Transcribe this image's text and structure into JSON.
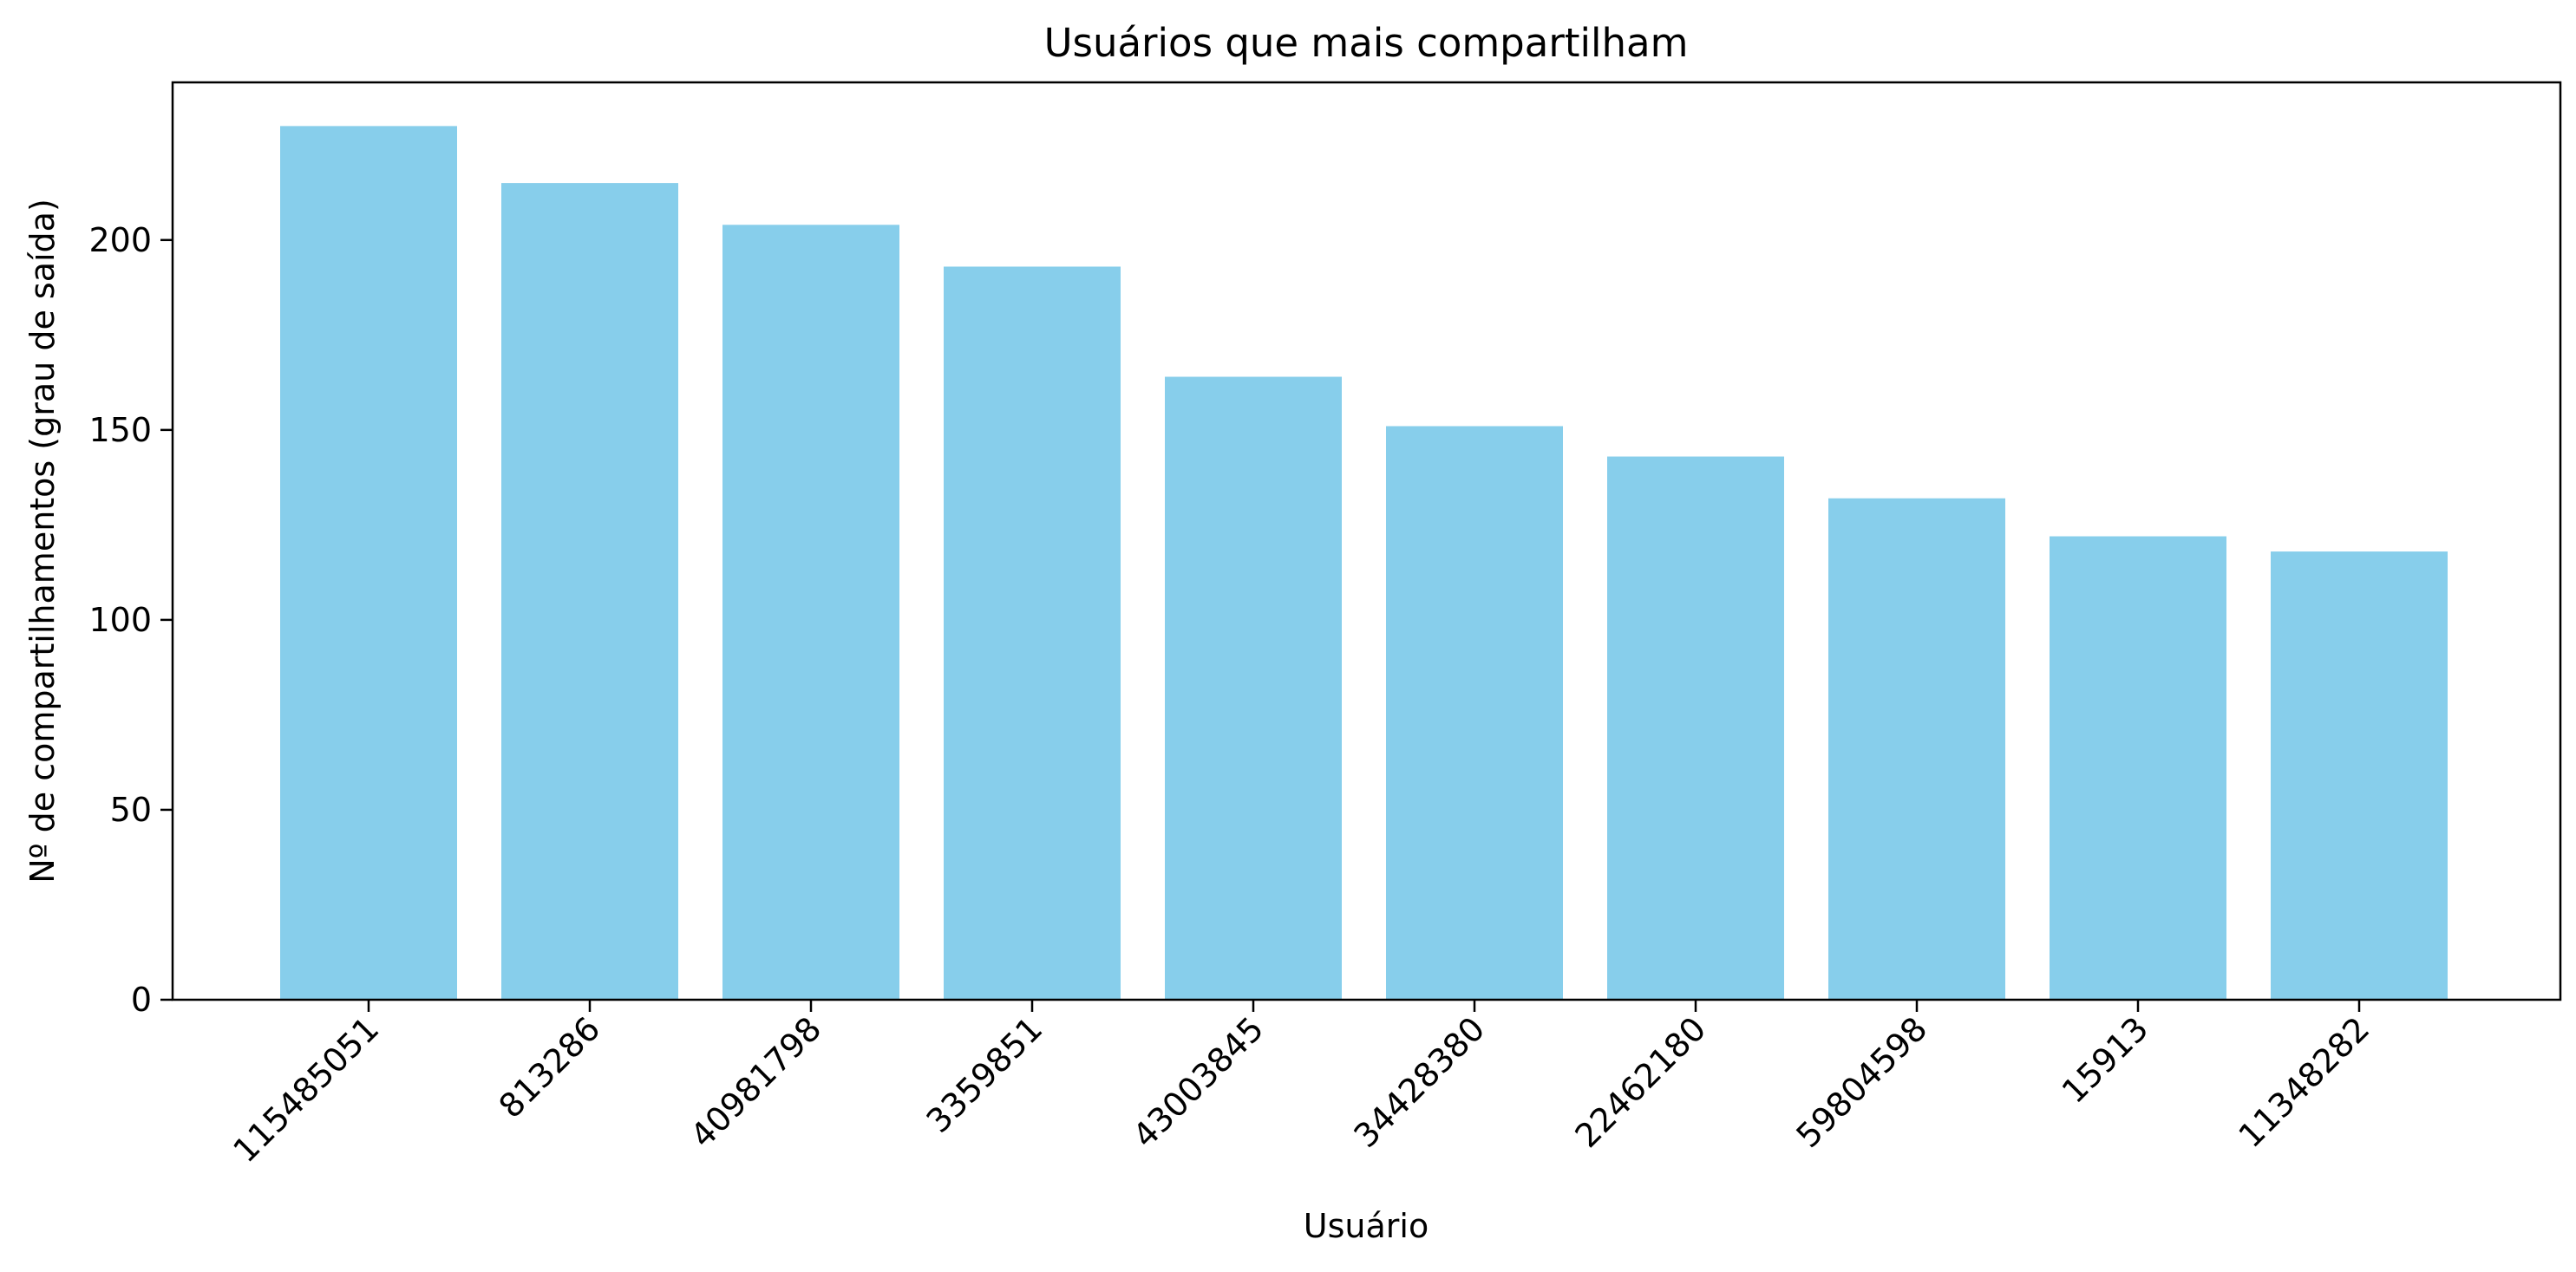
{
  "chart_data": {
    "type": "bar",
    "title": "Usuários que mais compartilham",
    "xlabel": "Usuário",
    "ylabel": "Nº de compartilhamentos (grau de saída)",
    "categories": [
      "115485051",
      "813286",
      "40981798",
      "3359851",
      "43003845",
      "34428380",
      "22462180",
      "59804598",
      "15913",
      "11348282"
    ],
    "values": [
      230,
      215,
      204,
      193,
      164,
      151,
      143,
      132,
      122,
      118
    ],
    "ylim": [
      0,
      241.5
    ],
    "yticks": [
      0,
      50,
      100,
      150,
      200
    ],
    "bar_color": "#87CEEB",
    "grid": false,
    "legend": "none"
  }
}
